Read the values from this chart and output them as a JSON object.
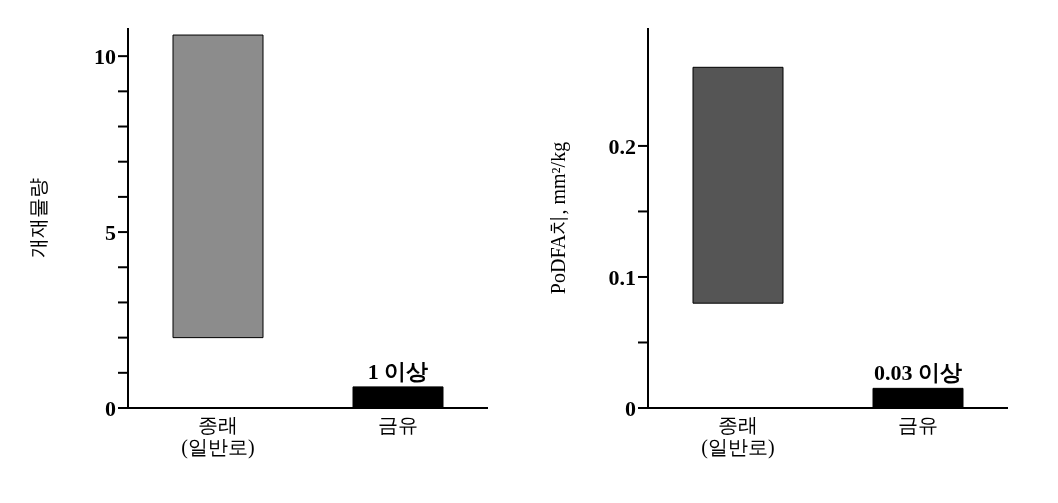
{
  "chart_data": [
    {
      "type": "bar",
      "ylabel": "개재물량",
      "categories": [
        "종래\n(일반로)",
        "금유"
      ],
      "values": [
        8.6,
        0.6
      ],
      "base": [
        2,
        0
      ],
      "colors": [
        "#8c8c8c",
        "#000000"
      ],
      "ylim": [
        0,
        10.8
      ],
      "yticks": [
        0,
        {
          "value": 1,
          "label": null
        },
        {
          "value": 2,
          "label": null
        },
        {
          "value": 3,
          "label": null
        },
        {
          "value": 4,
          "label": null
        },
        5,
        {
          "value": 6,
          "label": null
        },
        {
          "value": 7,
          "label": null
        },
        {
          "value": 8,
          "label": null
        },
        {
          "value": 9,
          "label": null
        },
        10
      ],
      "grid": false,
      "annotations": [
        {
          "text": "1 이상",
          "x": "금유",
          "y": 0.6
        }
      ]
    },
    {
      "type": "bar",
      "ylabel": "PoDFA치, mm²/kg",
      "categories": [
        "종래\n(일반로)",
        "금유"
      ],
      "values": [
        0.18,
        0.015
      ],
      "base": [
        0.08,
        0
      ],
      "colors": [
        "#555555",
        "#000000"
      ],
      "ylim": [
        0,
        0.29
      ],
      "yticks": [
        0,
        {
          "value": 0.05,
          "label": null
        },
        0.1,
        {
          "value": 0.15,
          "label": null
        },
        0.2
      ],
      "grid": false,
      "annotations": [
        {
          "text": "0.03 이상",
          "x": "금유",
          "y": 0.015
        }
      ]
    }
  ]
}
